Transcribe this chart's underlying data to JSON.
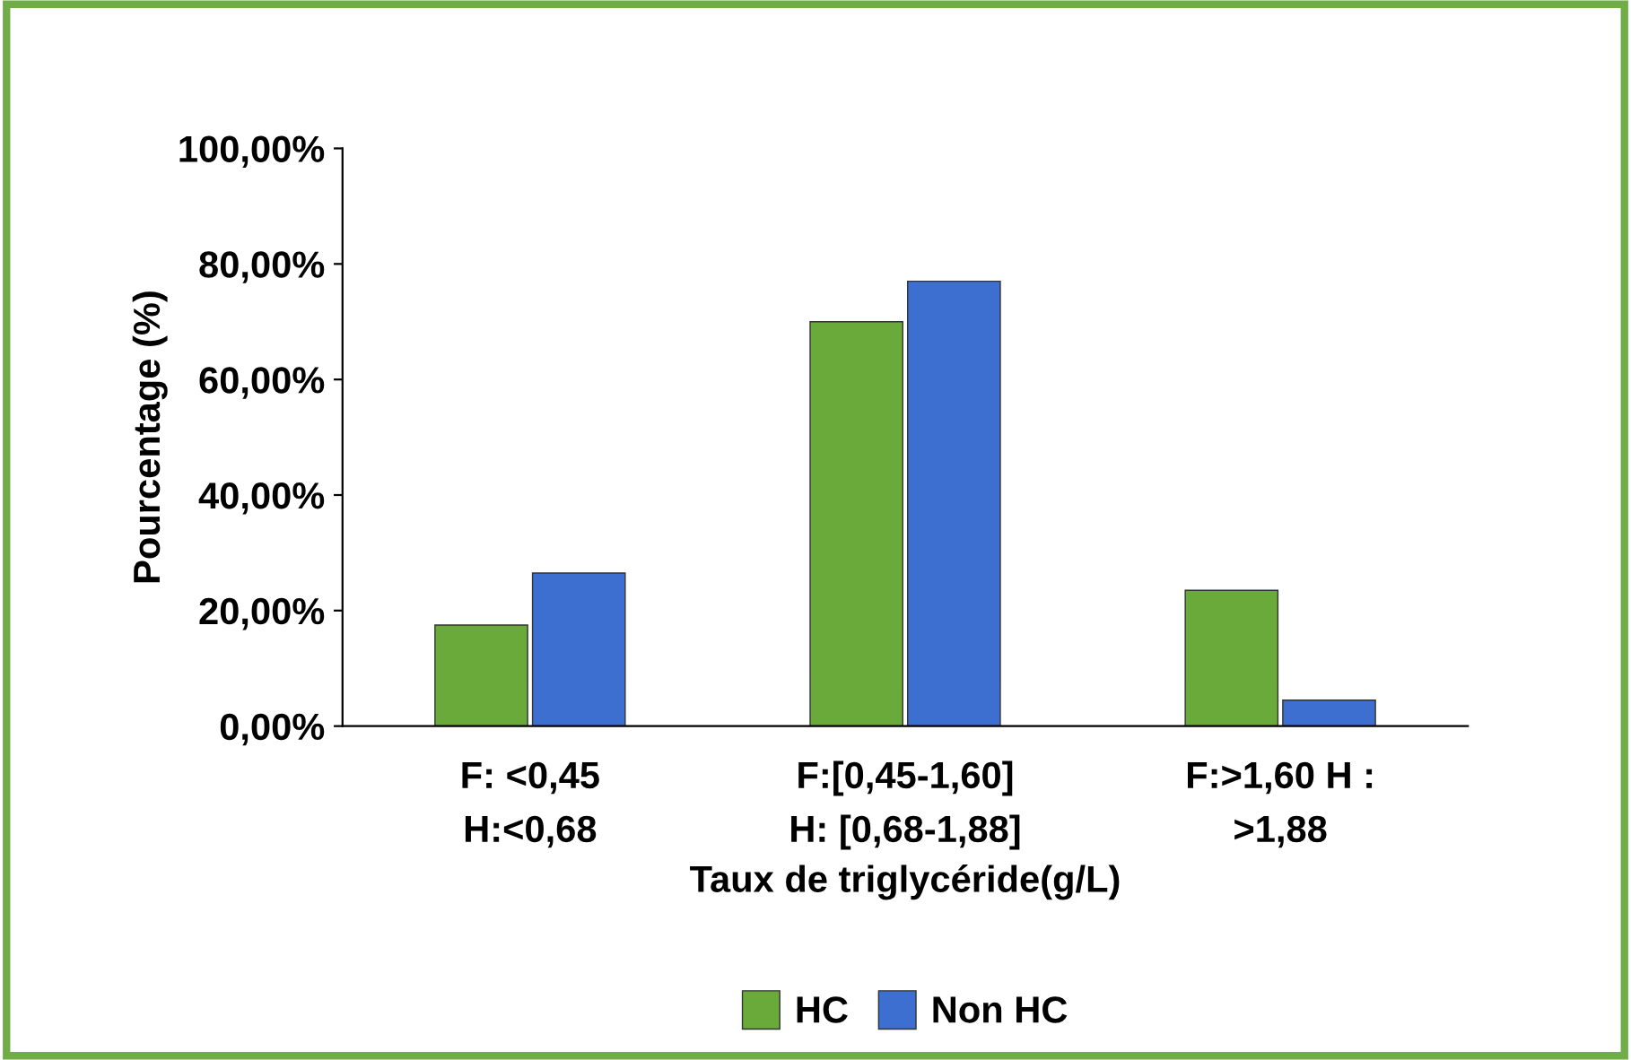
{
  "chart_data": {
    "type": "bar",
    "xlabel": "Taux de triglycéride(g/L)",
    "ylabel": "Pourcentage (%)",
    "categories": [
      "F: <0,45\nH:<0,68",
      "F:[0,45-1,60]\nH: [0,68-1,88]",
      "F:>1,60 H :\n>1,88"
    ],
    "series": [
      {
        "name": "HC",
        "color": "#6aaa3a",
        "values": [
          17.5,
          70,
          23.5
        ]
      },
      {
        "name": "Non HC",
        "color": "#3c6fd0",
        "values": [
          26.5,
          77,
          4.5
        ]
      }
    ],
    "ylim": [
      0,
      100
    ],
    "yticks": [
      {
        "value": 0,
        "label": "0,00%"
      },
      {
        "value": 20,
        "label": "20,00%"
      },
      {
        "value": 40,
        "label": "40,00%"
      },
      {
        "value": 60,
        "label": "60,00%"
      },
      {
        "value": 80,
        "label": "80,00%"
      },
      {
        "value": 100,
        "label": "100,00%"
      }
    ],
    "grid": false,
    "legend": "bottom"
  }
}
